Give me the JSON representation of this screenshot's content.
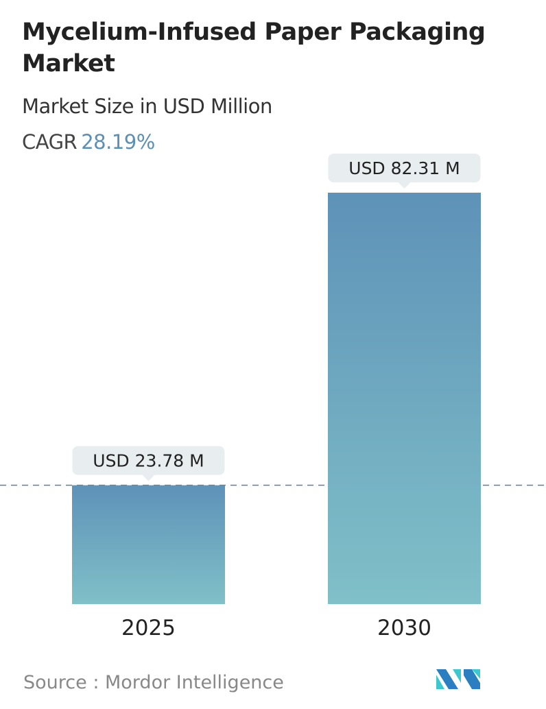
{
  "title": "Mycelium-Infused Paper Packaging Market",
  "subtitle": "Market Size in USD Million",
  "cagr_label": "CAGR",
  "cagr_value": "28.19%",
  "source": "Source :  Mordor Intelligence",
  "logo_text": "Mordor Intelligence",
  "colors": {
    "bar_top": "#5e92b8",
    "bar_bottom": "#80c0c8",
    "accent": "#5b8fb4",
    "label_bg": "#e8edf0",
    "logo_dark": "#2b7fc0",
    "logo_light": "#3dc8d0"
  },
  "chart_data": {
    "type": "bar",
    "categories": [
      "2025",
      "2030"
    ],
    "values": [
      23.78,
      82.31
    ],
    "data_labels": [
      "USD 23.78 M",
      "USD 82.31 M"
    ],
    "title": "Mycelium-Infused Paper Packaging Market",
    "ylabel": "Market Size in USD Million",
    "grid": false,
    "reference_line": 23.78
  }
}
